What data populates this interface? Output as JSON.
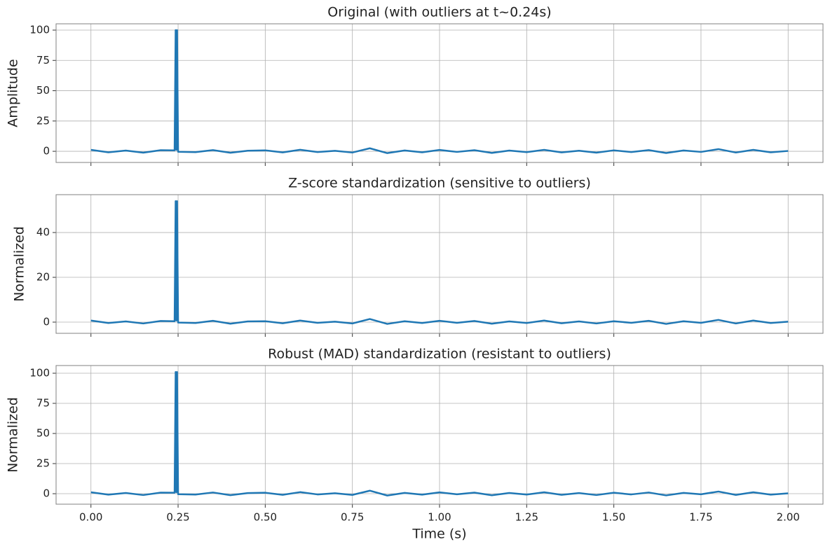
{
  "chart_data": [
    {
      "type": "line",
      "title": "Original (with outliers at t~0.24s)",
      "ylabel": "Amplitude",
      "color": "#1f77b4",
      "grid": true,
      "xlim": [
        -0.1,
        2.1
      ],
      "ylim": [
        -9.2,
        105.2
      ],
      "yticks": [
        0,
        25,
        50,
        75,
        100
      ],
      "x": [
        0,
        0.05,
        0.1,
        0.15,
        0.2,
        0.24,
        0.243,
        0.245,
        0.247,
        0.25,
        0.3,
        0.35,
        0.4,
        0.45,
        0.5,
        0.55,
        0.6,
        0.65,
        0.7,
        0.75,
        0.8,
        0.85,
        0.9,
        0.95,
        1.0,
        1.05,
        1.1,
        1.15,
        1.2,
        1.25,
        1.3,
        1.35,
        1.4,
        1.45,
        1.5,
        1.55,
        1.6,
        1.65,
        1.7,
        1.75,
        1.8,
        1.85,
        1.9,
        1.95,
        2.0
      ],
      "values": [
        1.2,
        -0.8,
        0.6,
        -1.1,
        0.9,
        0.8,
        100,
        1.2,
        100,
        -0.4,
        -0.7,
        1.0,
        -1.2,
        0.5,
        0.8,
        -0.9,
        1.3,
        -0.6,
        0.4,
        -1.0,
        2.5,
        -1.5,
        0.7,
        -0.8,
        1.1,
        -0.5,
        0.9,
        -1.3,
        0.6,
        -0.7,
        1.2,
        -0.9,
        0.5,
        -1.1,
        0.8,
        -0.6,
        1.0,
        -1.4,
        0.7,
        -0.5,
        1.8,
        -1.0,
        1.2,
        -0.8,
        0.3
      ]
    },
    {
      "type": "line",
      "title": "Z-score standardization (sensitive to outliers)",
      "ylabel": "Normalized",
      "color": "#1f77b4",
      "grid": true,
      "xlim": [
        -0.1,
        2.1
      ],
      "ylim": [
        -5,
        56.9
      ],
      "yticks": [
        0,
        20,
        40
      ],
      "x": [
        0,
        0.05,
        0.1,
        0.15,
        0.2,
        0.24,
        0.243,
        0.245,
        0.247,
        0.25,
        0.3,
        0.35,
        0.4,
        0.45,
        0.5,
        0.55,
        0.6,
        0.65,
        0.7,
        0.75,
        0.8,
        0.85,
        0.9,
        0.95,
        1.0,
        1.05,
        1.1,
        1.15,
        1.2,
        1.25,
        1.3,
        1.35,
        1.4,
        1.45,
        1.5,
        1.55,
        1.6,
        1.65,
        1.7,
        1.75,
        1.8,
        1.85,
        1.9,
        1.95,
        2.0
      ],
      "values": [
        0.7,
        -0.4,
        0.3,
        -0.6,
        0.5,
        0.4,
        54,
        0.7,
        54,
        -0.2,
        -0.4,
        0.6,
        -0.7,
        0.3,
        0.4,
        -0.5,
        0.7,
        -0.3,
        0.2,
        -0.6,
        1.4,
        -0.8,
        0.4,
        -0.4,
        0.6,
        -0.3,
        0.5,
        -0.7,
        0.3,
        -0.4,
        0.7,
        -0.5,
        0.3,
        -0.6,
        0.4,
        -0.3,
        0.6,
        -0.8,
        0.4,
        -0.3,
        1.0,
        -0.6,
        0.7,
        -0.4,
        0.2
      ]
    },
    {
      "type": "line",
      "title": "Robust (MAD) standardization (resistant to outliers)",
      "ylabel": "Normalized",
      "xlabel": "Time (s)",
      "color": "#1f77b4",
      "grid": true,
      "xlim": [
        -0.1,
        2.1
      ],
      "ylim": [
        -8.7,
        106.4
      ],
      "yticks": [
        0,
        25,
        50,
        75,
        100
      ],
      "xticks": [
        {
          "value": 0,
          "label": "0.00"
        },
        {
          "value": 0.25,
          "label": "0.25"
        },
        {
          "value": 0.5,
          "label": "0.50"
        },
        {
          "value": 0.75,
          "label": "0.75"
        },
        {
          "value": 1,
          "label": "1.00"
        },
        {
          "value": 1.25,
          "label": "1.25"
        },
        {
          "value": 1.5,
          "label": "1.50"
        },
        {
          "value": 1.75,
          "label": "1.75"
        },
        {
          "value": 2,
          "label": "2.00"
        }
      ],
      "x": [
        0,
        0.05,
        0.1,
        0.15,
        0.2,
        0.24,
        0.243,
        0.245,
        0.247,
        0.25,
        0.3,
        0.35,
        0.4,
        0.45,
        0.5,
        0.55,
        0.6,
        0.65,
        0.7,
        0.75,
        0.8,
        0.85,
        0.9,
        0.95,
        1.0,
        1.05,
        1.1,
        1.15,
        1.2,
        1.25,
        1.3,
        1.35,
        1.4,
        1.45,
        1.5,
        1.55,
        1.6,
        1.65,
        1.7,
        1.75,
        1.8,
        1.85,
        1.9,
        1.95,
        2.0
      ],
      "values": [
        1.2,
        -0.8,
        0.6,
        -1.1,
        0.9,
        0.8,
        101,
        1.2,
        101,
        -0.4,
        -0.7,
        1.0,
        -1.2,
        0.5,
        0.8,
        -0.9,
        1.3,
        -0.6,
        0.4,
        -1.0,
        2.5,
        -1.5,
        0.7,
        -0.8,
        1.1,
        -0.5,
        0.9,
        -1.3,
        0.6,
        -0.7,
        1.2,
        -0.9,
        0.5,
        -1.1,
        0.8,
        -0.6,
        1.0,
        -1.4,
        0.7,
        -0.5,
        1.8,
        -1.0,
        1.2,
        -0.8,
        0.3
      ]
    }
  ]
}
